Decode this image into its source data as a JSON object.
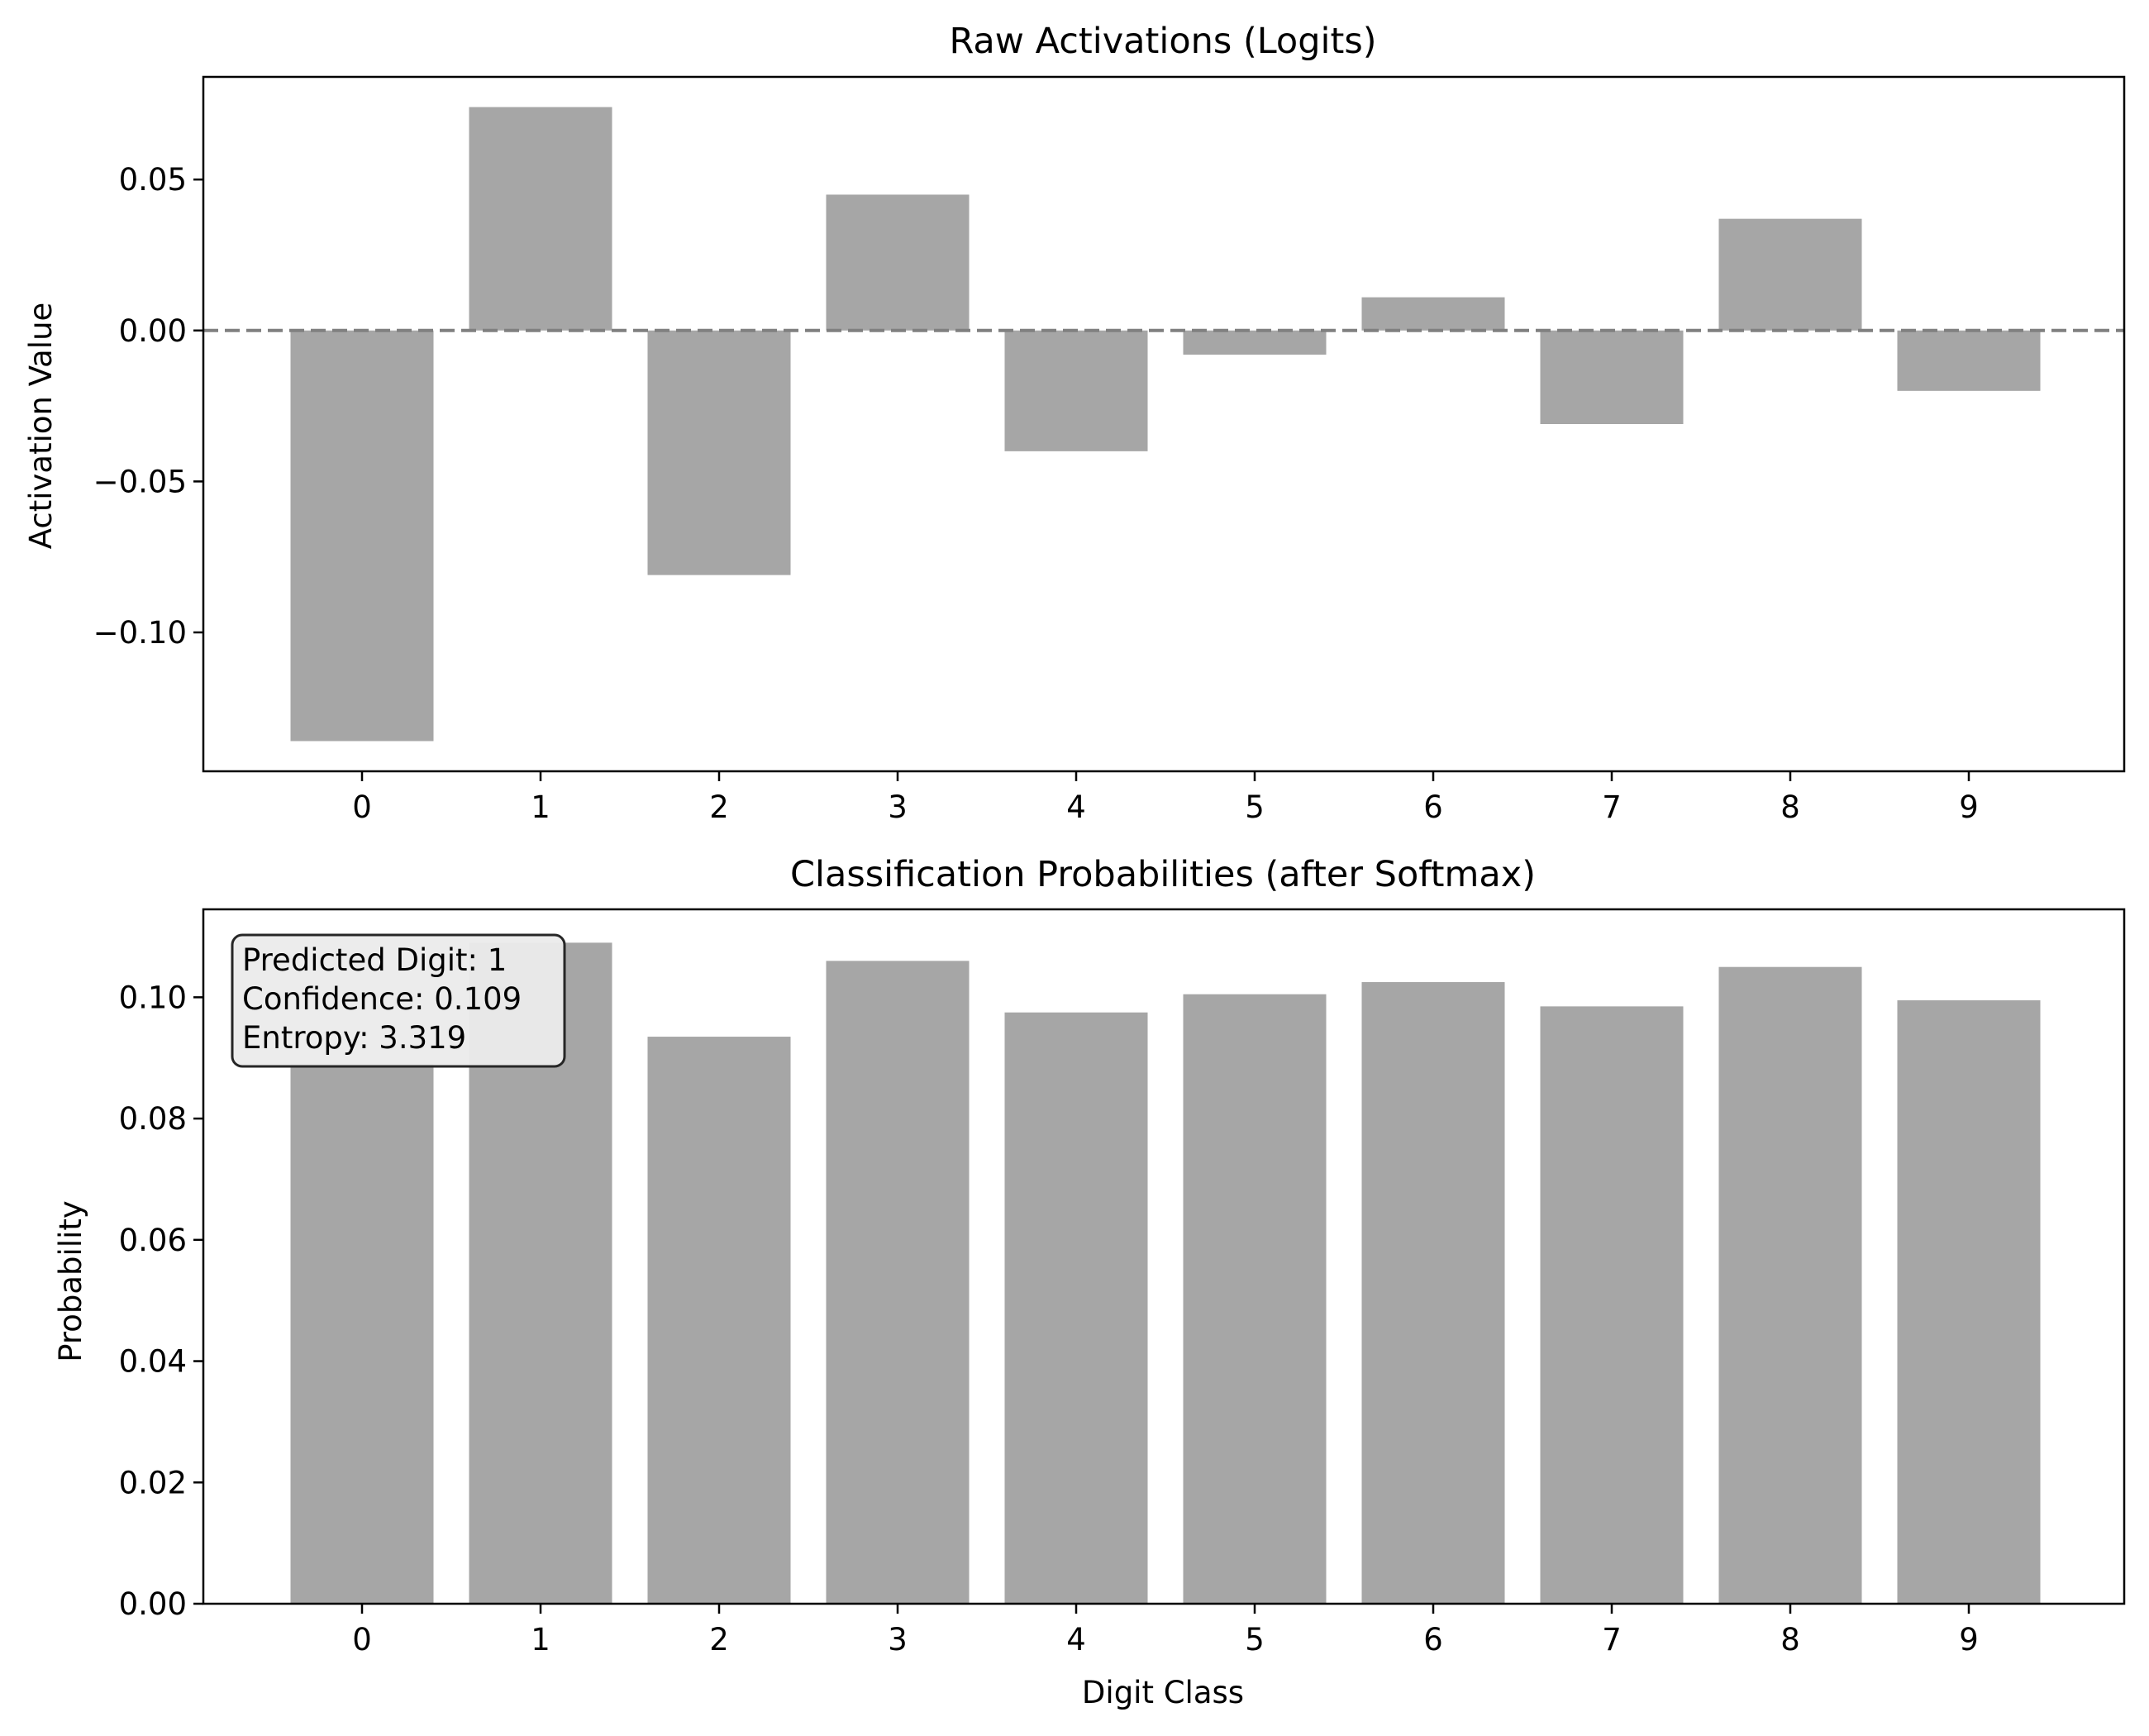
{
  "chart_data": [
    {
      "type": "bar",
      "title": "Raw Activations (Logits)",
      "xlabel": "",
      "ylabel": "Activation Value",
      "categories": [
        "0",
        "1",
        "2",
        "3",
        "4",
        "5",
        "6",
        "7",
        "8",
        "9"
      ],
      "values": [
        -0.136,
        0.074,
        -0.081,
        0.045,
        -0.04,
        -0.008,
        0.011,
        -0.031,
        0.037,
        -0.02
      ],
      "ylim": [
        -0.146,
        0.084
      ],
      "yticks": [
        0.05,
        0.0,
        -0.05,
        -0.1
      ],
      "ytick_labels": [
        "0.05",
        "0.00",
        "−0.05",
        "−0.10"
      ],
      "reference_line": {
        "y": 0,
        "style": "dashed",
        "color": "#808080"
      },
      "bar_color": "#a6a6a6",
      "grid": false
    },
    {
      "type": "bar",
      "title": "Classification Probabilities (after Softmax)",
      "xlabel": "Digit Class",
      "ylabel": "Probability",
      "categories": [
        "0",
        "1",
        "2",
        "3",
        "4",
        "5",
        "6",
        "7",
        "8",
        "9"
      ],
      "values": [
        0.089,
        0.109,
        0.0935,
        0.106,
        0.0975,
        0.1005,
        0.1025,
        0.0985,
        0.105,
        0.0995
      ],
      "ylim": [
        0,
        0.1145
      ],
      "yticks": [
        0.0,
        0.02,
        0.04,
        0.06,
        0.08,
        0.1
      ],
      "ytick_labels": [
        "0.00",
        "0.02",
        "0.04",
        "0.06",
        "0.08",
        "0.10"
      ],
      "bar_color": "#a6a6a6",
      "grid": false,
      "annotation": {
        "lines": [
          "Predicted Digit: 1",
          "Confidence: 0.109",
          "Entropy: 3.319"
        ],
        "placement": "top-left"
      }
    }
  ]
}
